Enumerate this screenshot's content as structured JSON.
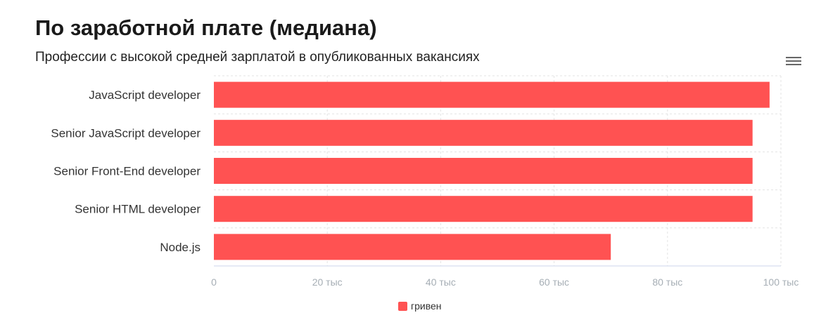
{
  "header": {
    "title": "По заработной плате (медиана)",
    "subtitle": "Профессии с высокой средней зарплатой в опубликованных вакансиях",
    "menu_icon": "hamburger-menu-icon"
  },
  "chart_data": {
    "type": "bar",
    "orientation": "horizontal",
    "categories": [
      "JavaScript developer",
      "Senior JavaScript developer",
      "Senior Front-End developer",
      "Senior HTML developer",
      "Node.js"
    ],
    "series": [
      {
        "name": "гривен",
        "values": [
          98000,
          95000,
          95000,
          95000,
          70000
        ],
        "color": "#ff5252"
      }
    ],
    "xlim": [
      0,
      100000
    ],
    "x_ticks": [
      0,
      20000,
      40000,
      60000,
      80000,
      100000
    ],
    "x_tick_labels": [
      "0",
      "20 тыс",
      "40 тыс",
      "60 тыс",
      "80 тыс",
      "100 тыс"
    ],
    "grid": true,
    "legend": "bottom"
  }
}
